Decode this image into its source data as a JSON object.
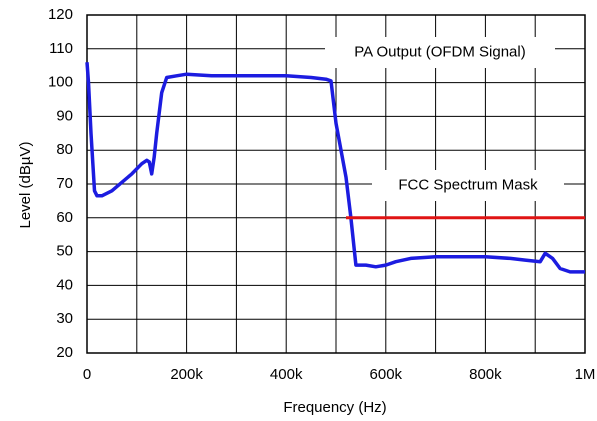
{
  "chart_data": {
    "type": "line",
    "xlabel": "Frequency (Hz)",
    "ylabel": "Level (dBµV)",
    "xlim": [
      0,
      1000000
    ],
    "ylim": [
      20,
      120
    ],
    "xticks": [
      0,
      {
        "value": 200000,
        "label": "200k"
      },
      {
        "value": 400000,
        "label": "400k"
      },
      {
        "value": 600000,
        "label": "600k"
      },
      {
        "value": 800000,
        "label": "800k"
      },
      {
        "value": 1000000,
        "label": "1M"
      }
    ],
    "xminorticks": [
      100000,
      300000,
      500000,
      700000,
      900000
    ],
    "yticks": [
      20,
      30,
      40,
      50,
      60,
      70,
      80,
      90,
      100,
      110,
      120
    ],
    "grid": true,
    "series": [
      {
        "name": "PA Output (OFDM Signal)",
        "color": "#1c1ce0",
        "x": [
          0,
          3000,
          8000,
          15000,
          20000,
          30000,
          50000,
          70000,
          90000,
          110000,
          120000,
          125000,
          130000,
          135000,
          140000,
          150000,
          160000,
          180000,
          200000,
          250000,
          300000,
          350000,
          400000,
          450000,
          480000,
          490000,
          500000,
          520000,
          530000,
          540000,
          560000,
          580000,
          600000,
          620000,
          650000,
          700000,
          750000,
          800000,
          850000,
          880000,
          910000,
          920000,
          935000,
          950000,
          970000,
          1000000
        ],
        "values": [
          106,
          100,
          85,
          68,
          66.5,
          66.5,
          68,
          70.5,
          73,
          76,
          77,
          76.5,
          73,
          78,
          85,
          97,
          101.5,
          102,
          102.5,
          102,
          102,
          102,
          102,
          101.5,
          101,
          100.5,
          88,
          72,
          60,
          46,
          46,
          45.5,
          46,
          47,
          48,
          48.5,
          48.5,
          48.5,
          48,
          47.5,
          47,
          49.5,
          48,
          45,
          44,
          44
        ]
      },
      {
        "name": "FCC Spectrum Mask",
        "color": "#e01414",
        "x": [
          520000,
          1000000
        ],
        "values": [
          60,
          60
        ]
      }
    ]
  }
}
